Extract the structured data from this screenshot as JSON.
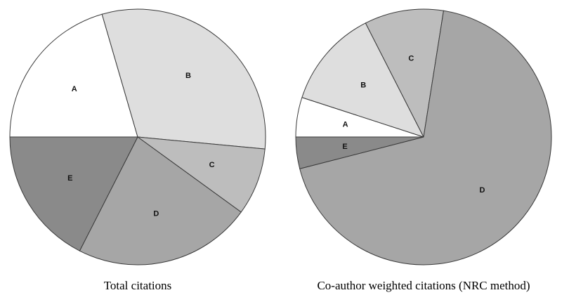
{
  "chart_data": [
    {
      "type": "pie",
      "title": "Total citations",
      "start_angle_deg": 180,
      "direction": "clockwise",
      "slices": [
        {
          "label": "A",
          "value": 20.5,
          "color": "#ffffff"
        },
        {
          "label": "B",
          "value": 31.0,
          "color": "#dedede"
        },
        {
          "label": "C",
          "value": 8.5,
          "color": "#bdbdbd"
        },
        {
          "label": "D",
          "value": 22.5,
          "color": "#a6a6a6"
        },
        {
          "label": "E",
          "value": 17.5,
          "color": "#8a8a8a"
        }
      ]
    },
    {
      "type": "pie",
      "title": "Co-author weighted citations (NRC method)",
      "start_angle_deg": 180,
      "direction": "clockwise",
      "slices": [
        {
          "label": "A",
          "value": 5.0,
          "color": "#ffffff"
        },
        {
          "label": "B",
          "value": 12.5,
          "color": "#dedede"
        },
        {
          "label": "C",
          "value": 10.0,
          "color": "#bdbdbd"
        },
        {
          "label": "D",
          "value": 68.5,
          "color": "#a6a6a6"
        },
        {
          "label": "E",
          "value": 4.0,
          "color": "#8a8a8a"
        }
      ]
    }
  ]
}
